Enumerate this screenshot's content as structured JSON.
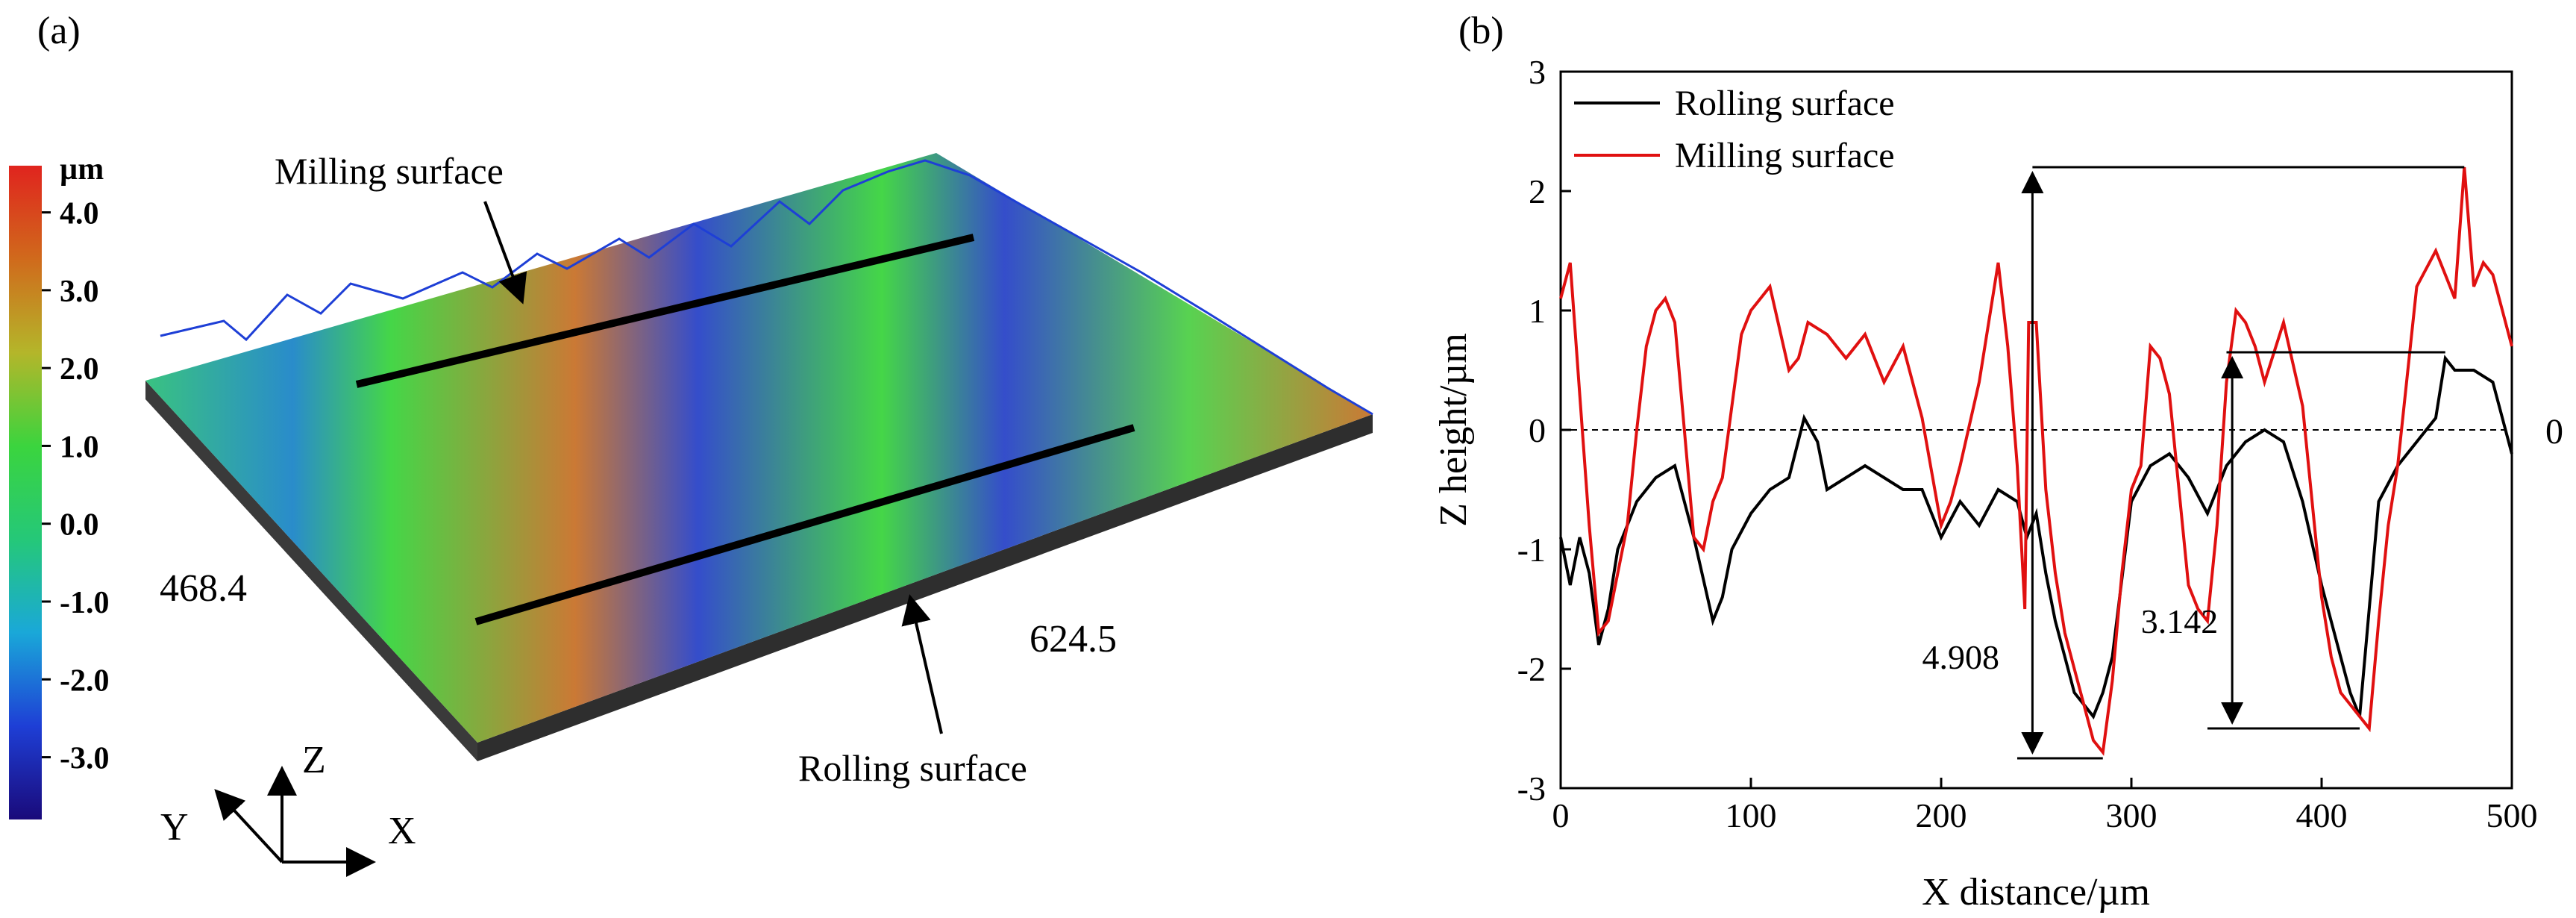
{
  "panel_a": {
    "label": "(a)",
    "colorbar": {
      "unit": "µm",
      "tick_labels": [
        "4.0",
        "3.0",
        "2.0",
        "1.0",
        "0.0",
        "-1.0",
        "-2.0",
        "-3.0"
      ],
      "tick_values": [
        4.0,
        3.0,
        2.0,
        1.0,
        0.0,
        -1.0,
        -2.0,
        -3.0
      ],
      "range": [
        -3.8,
        4.6
      ],
      "colors": [
        "#1a0a7a",
        "#1e3fd6",
        "#1aa8d8",
        "#25c878",
        "#3bd43e",
        "#b4b62a",
        "#d06a1c",
        "#e0241e"
      ]
    },
    "annotations": {
      "milling": "Milling surface",
      "rolling": "Rolling surface"
    },
    "dimensions": {
      "y_extent": "468.4",
      "x_extent": "624.5"
    },
    "axes": {
      "x": "X",
      "y": "Y",
      "z": "Z"
    },
    "surface_colors": {
      "base": "#3a3a3a",
      "valley": "#2a44c8",
      "mid": "#2fbf7a",
      "high": "#4fd048",
      "peak": "#c8722a"
    }
  },
  "panel_b": {
    "label": "(b)",
    "zero_label": "0",
    "annotations": {
      "milling_range": "4.908",
      "rolling_range": "3.142"
    },
    "chart_data": {
      "type": "line",
      "xlabel": "X distance/µm",
      "ylabel": "Z height/µm",
      "xlim": [
        0,
        500
      ],
      "ylim": [
        -3,
        3
      ],
      "xticks": [
        0,
        100,
        200,
        300,
        400,
        500
      ],
      "yticks": [
        -3,
        -2,
        -1,
        0,
        1,
        2,
        3
      ],
      "reference_line": 0,
      "series": [
        {
          "name": "Rolling surface",
          "color": "#000000",
          "x": [
            0,
            5,
            10,
            15,
            20,
            25,
            30,
            40,
            50,
            60,
            70,
            80,
            85,
            90,
            100,
            110,
            120,
            128,
            135,
            140,
            150,
            160,
            170,
            180,
            190,
            200,
            210,
            220,
            230,
            240,
            245,
            250,
            255,
            260,
            265,
            270,
            275,
            280,
            285,
            290,
            300,
            310,
            320,
            330,
            340,
            350,
            360,
            370,
            380,
            390,
            400,
            410,
            415,
            420,
            425,
            430,
            440,
            450,
            460,
            465,
            470,
            480,
            490,
            500
          ],
          "y": [
            -0.9,
            -1.3,
            -0.9,
            -1.2,
            -1.8,
            -1.5,
            -1.0,
            -0.6,
            -0.4,
            -0.3,
            -0.9,
            -1.6,
            -1.4,
            -1.0,
            -0.7,
            -0.5,
            -0.4,
            0.1,
            -0.1,
            -0.5,
            -0.4,
            -0.3,
            -0.4,
            -0.5,
            -0.5,
            -0.9,
            -0.6,
            -0.8,
            -0.5,
            -0.6,
            -0.9,
            -0.7,
            -1.2,
            -1.6,
            -1.9,
            -2.2,
            -2.3,
            -2.4,
            -2.2,
            -1.9,
            -0.6,
            -0.3,
            -0.2,
            -0.4,
            -0.7,
            -0.3,
            -0.1,
            0.0,
            -0.1,
            -0.6,
            -1.3,
            -1.9,
            -2.2,
            -2.4,
            -1.5,
            -0.6,
            -0.3,
            -0.1,
            0.1,
            0.6,
            0.5,
            0.5,
            0.4,
            -0.2
          ]
        },
        {
          "name": "Milling surface",
          "color": "#e01010",
          "x": [
            0,
            5,
            10,
            15,
            20,
            25,
            30,
            35,
            40,
            45,
            50,
            55,
            60,
            65,
            70,
            75,
            80,
            85,
            90,
            95,
            100,
            105,
            110,
            120,
            125,
            130,
            140,
            150,
            160,
            170,
            180,
            190,
            200,
            205,
            210,
            220,
            230,
            235,
            240,
            244,
            246,
            250,
            255,
            260,
            265,
            270,
            275,
            280,
            285,
            290,
            295,
            300,
            305,
            310,
            315,
            320,
            325,
            330,
            335,
            340,
            345,
            350,
            355,
            360,
            365,
            370,
            380,
            390,
            400,
            405,
            410,
            415,
            420,
            425,
            430,
            435,
            440,
            450,
            460,
            465,
            470,
            475,
            480,
            485,
            490,
            495,
            500
          ],
          "y": [
            1.1,
            1.4,
            0.3,
            -0.8,
            -1.7,
            -1.6,
            -1.2,
            -0.8,
            0.0,
            0.7,
            1.0,
            1.1,
            0.9,
            0.0,
            -0.9,
            -1.0,
            -0.6,
            -0.4,
            0.2,
            0.8,
            1.0,
            1.1,
            1.2,
            0.5,
            0.6,
            0.9,
            0.8,
            0.6,
            0.8,
            0.4,
            0.7,
            0.1,
            -0.8,
            -0.6,
            -0.3,
            0.4,
            1.4,
            0.7,
            -0.3,
            -1.5,
            0.9,
            0.9,
            -0.5,
            -1.2,
            -1.7,
            -2.0,
            -2.3,
            -2.6,
            -2.7,
            -2.1,
            -1.2,
            -0.5,
            -0.3,
            0.7,
            0.6,
            0.3,
            -0.5,
            -1.3,
            -1.5,
            -1.6,
            -0.8,
            0.4,
            1.0,
            0.9,
            0.7,
            0.4,
            0.9,
            0.2,
            -1.4,
            -1.9,
            -2.2,
            -2.3,
            -2.4,
            -2.5,
            -1.6,
            -0.8,
            -0.3,
            1.2,
            1.5,
            1.3,
            1.1,
            2.2,
            1.2,
            1.4,
            1.3,
            1.0,
            0.7
          ]
        }
      ]
    }
  }
}
